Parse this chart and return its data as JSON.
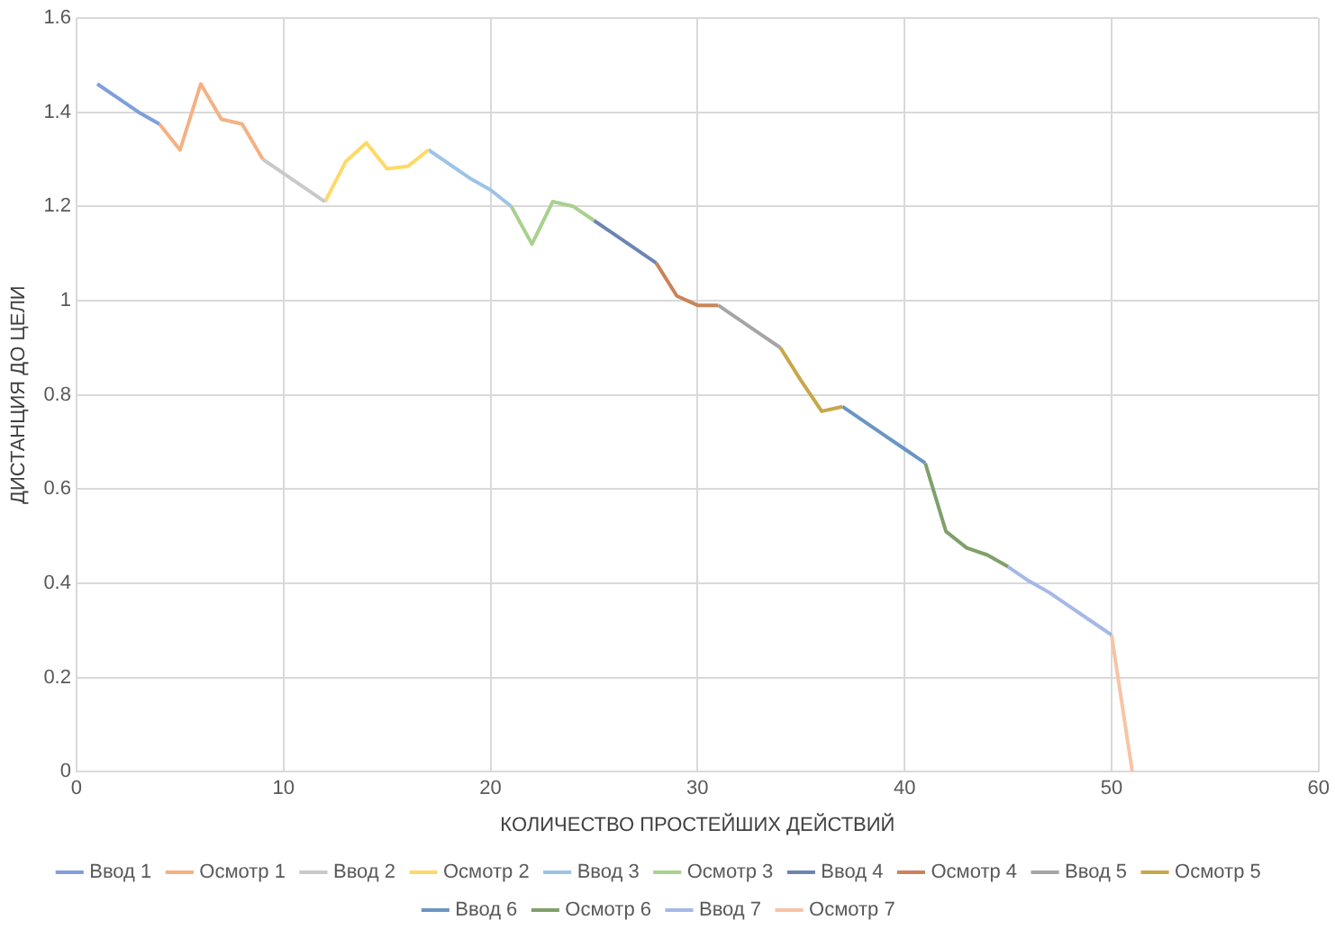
{
  "chart_data": {
    "type": "line",
    "xlabel": "КОЛИЧЕСТВО ПРОСТЕЙШИХ ДЕЙСТВИЙ",
    "ylabel": "ДИСТАНЦИЯ ДО ЦЕЛИ",
    "xlim": [
      0,
      60
    ],
    "xticks": [
      0,
      10,
      20,
      30,
      40,
      50,
      60
    ],
    "ylim": [
      0,
      1.6
    ],
    "yticks": [
      0,
      0.2,
      0.4,
      0.6,
      0.8,
      1,
      1.2,
      1.4,
      1.6
    ],
    "grid": true,
    "legend": "bottom",
    "marker": "none",
    "line_style": "solid",
    "series": [
      {
        "name": "Ввод 1",
        "color": "#7f9fdb",
        "x": [
          1,
          2,
          3,
          4
        ],
        "values": [
          1.46,
          1.43,
          1.4,
          1.375
        ]
      },
      {
        "name": "Осмотр 1",
        "color": "#f4b183",
        "x": [
          4,
          5,
          6,
          7,
          8,
          9
        ],
        "values": [
          1.375,
          1.32,
          1.46,
          1.385,
          1.375,
          1.3
        ]
      },
      {
        "name": "Ввод 2",
        "color": "#c9c9c9",
        "x": [
          9,
          10,
          11,
          12
        ],
        "values": [
          1.3,
          1.27,
          1.24,
          1.21
        ]
      },
      {
        "name": "Осмотр 2",
        "color": "#ffd966",
        "x": [
          12,
          13,
          14,
          15,
          16,
          17
        ],
        "values": [
          1.21,
          1.295,
          1.335,
          1.28,
          1.285,
          1.32
        ]
      },
      {
        "name": "Ввод 3",
        "color": "#9dc3e6",
        "x": [
          17,
          18,
          19,
          20,
          21
        ],
        "values": [
          1.32,
          1.29,
          1.26,
          1.235,
          1.2
        ]
      },
      {
        "name": "Осмотр 3",
        "color": "#a9d18e",
        "x": [
          21,
          22,
          23,
          24,
          25
        ],
        "values": [
          1.2,
          1.12,
          1.21,
          1.2,
          1.17
        ]
      },
      {
        "name": "Ввод 4",
        "color": "#6c84b4",
        "x": [
          25,
          26,
          27,
          28
        ],
        "values": [
          1.17,
          1.14,
          1.11,
          1.08
        ]
      },
      {
        "name": "Осмотр 4",
        "color": "#c9845a",
        "x": [
          28,
          29,
          30,
          31
        ],
        "values": [
          1.08,
          1.01,
          0.99,
          0.99
        ]
      },
      {
        "name": "Ввод 5",
        "color": "#a5a5a5",
        "x": [
          31,
          32,
          33,
          34
        ],
        "values": [
          0.99,
          0.96,
          0.93,
          0.9
        ]
      },
      {
        "name": "Осмотр 5",
        "color": "#c6a74a",
        "x": [
          34,
          35,
          36,
          37
        ],
        "values": [
          0.9,
          0.83,
          0.765,
          0.775
        ]
      },
      {
        "name": "Ввод 6",
        "color": "#6a95c4",
        "x": [
          37,
          38,
          39,
          40,
          41
        ],
        "values": [
          0.775,
          0.745,
          0.715,
          0.685,
          0.655
        ]
      },
      {
        "name": "Осмотр 6",
        "color": "#7fa06a",
        "x": [
          41,
          42,
          43,
          44,
          45
        ],
        "values": [
          0.655,
          0.51,
          0.475,
          0.46,
          0.435
        ]
      },
      {
        "name": "Ввод 7",
        "color": "#a4b9e8",
        "x": [
          45,
          46,
          47,
          48,
          49,
          50
        ],
        "values": [
          0.435,
          0.405,
          0.38,
          0.35,
          0.32,
          0.29
        ]
      },
      {
        "name": "Осмотр 7",
        "color": "#f7c4a5",
        "x": [
          50,
          51
        ],
        "values": [
          0.29,
          0
        ]
      }
    ]
  }
}
